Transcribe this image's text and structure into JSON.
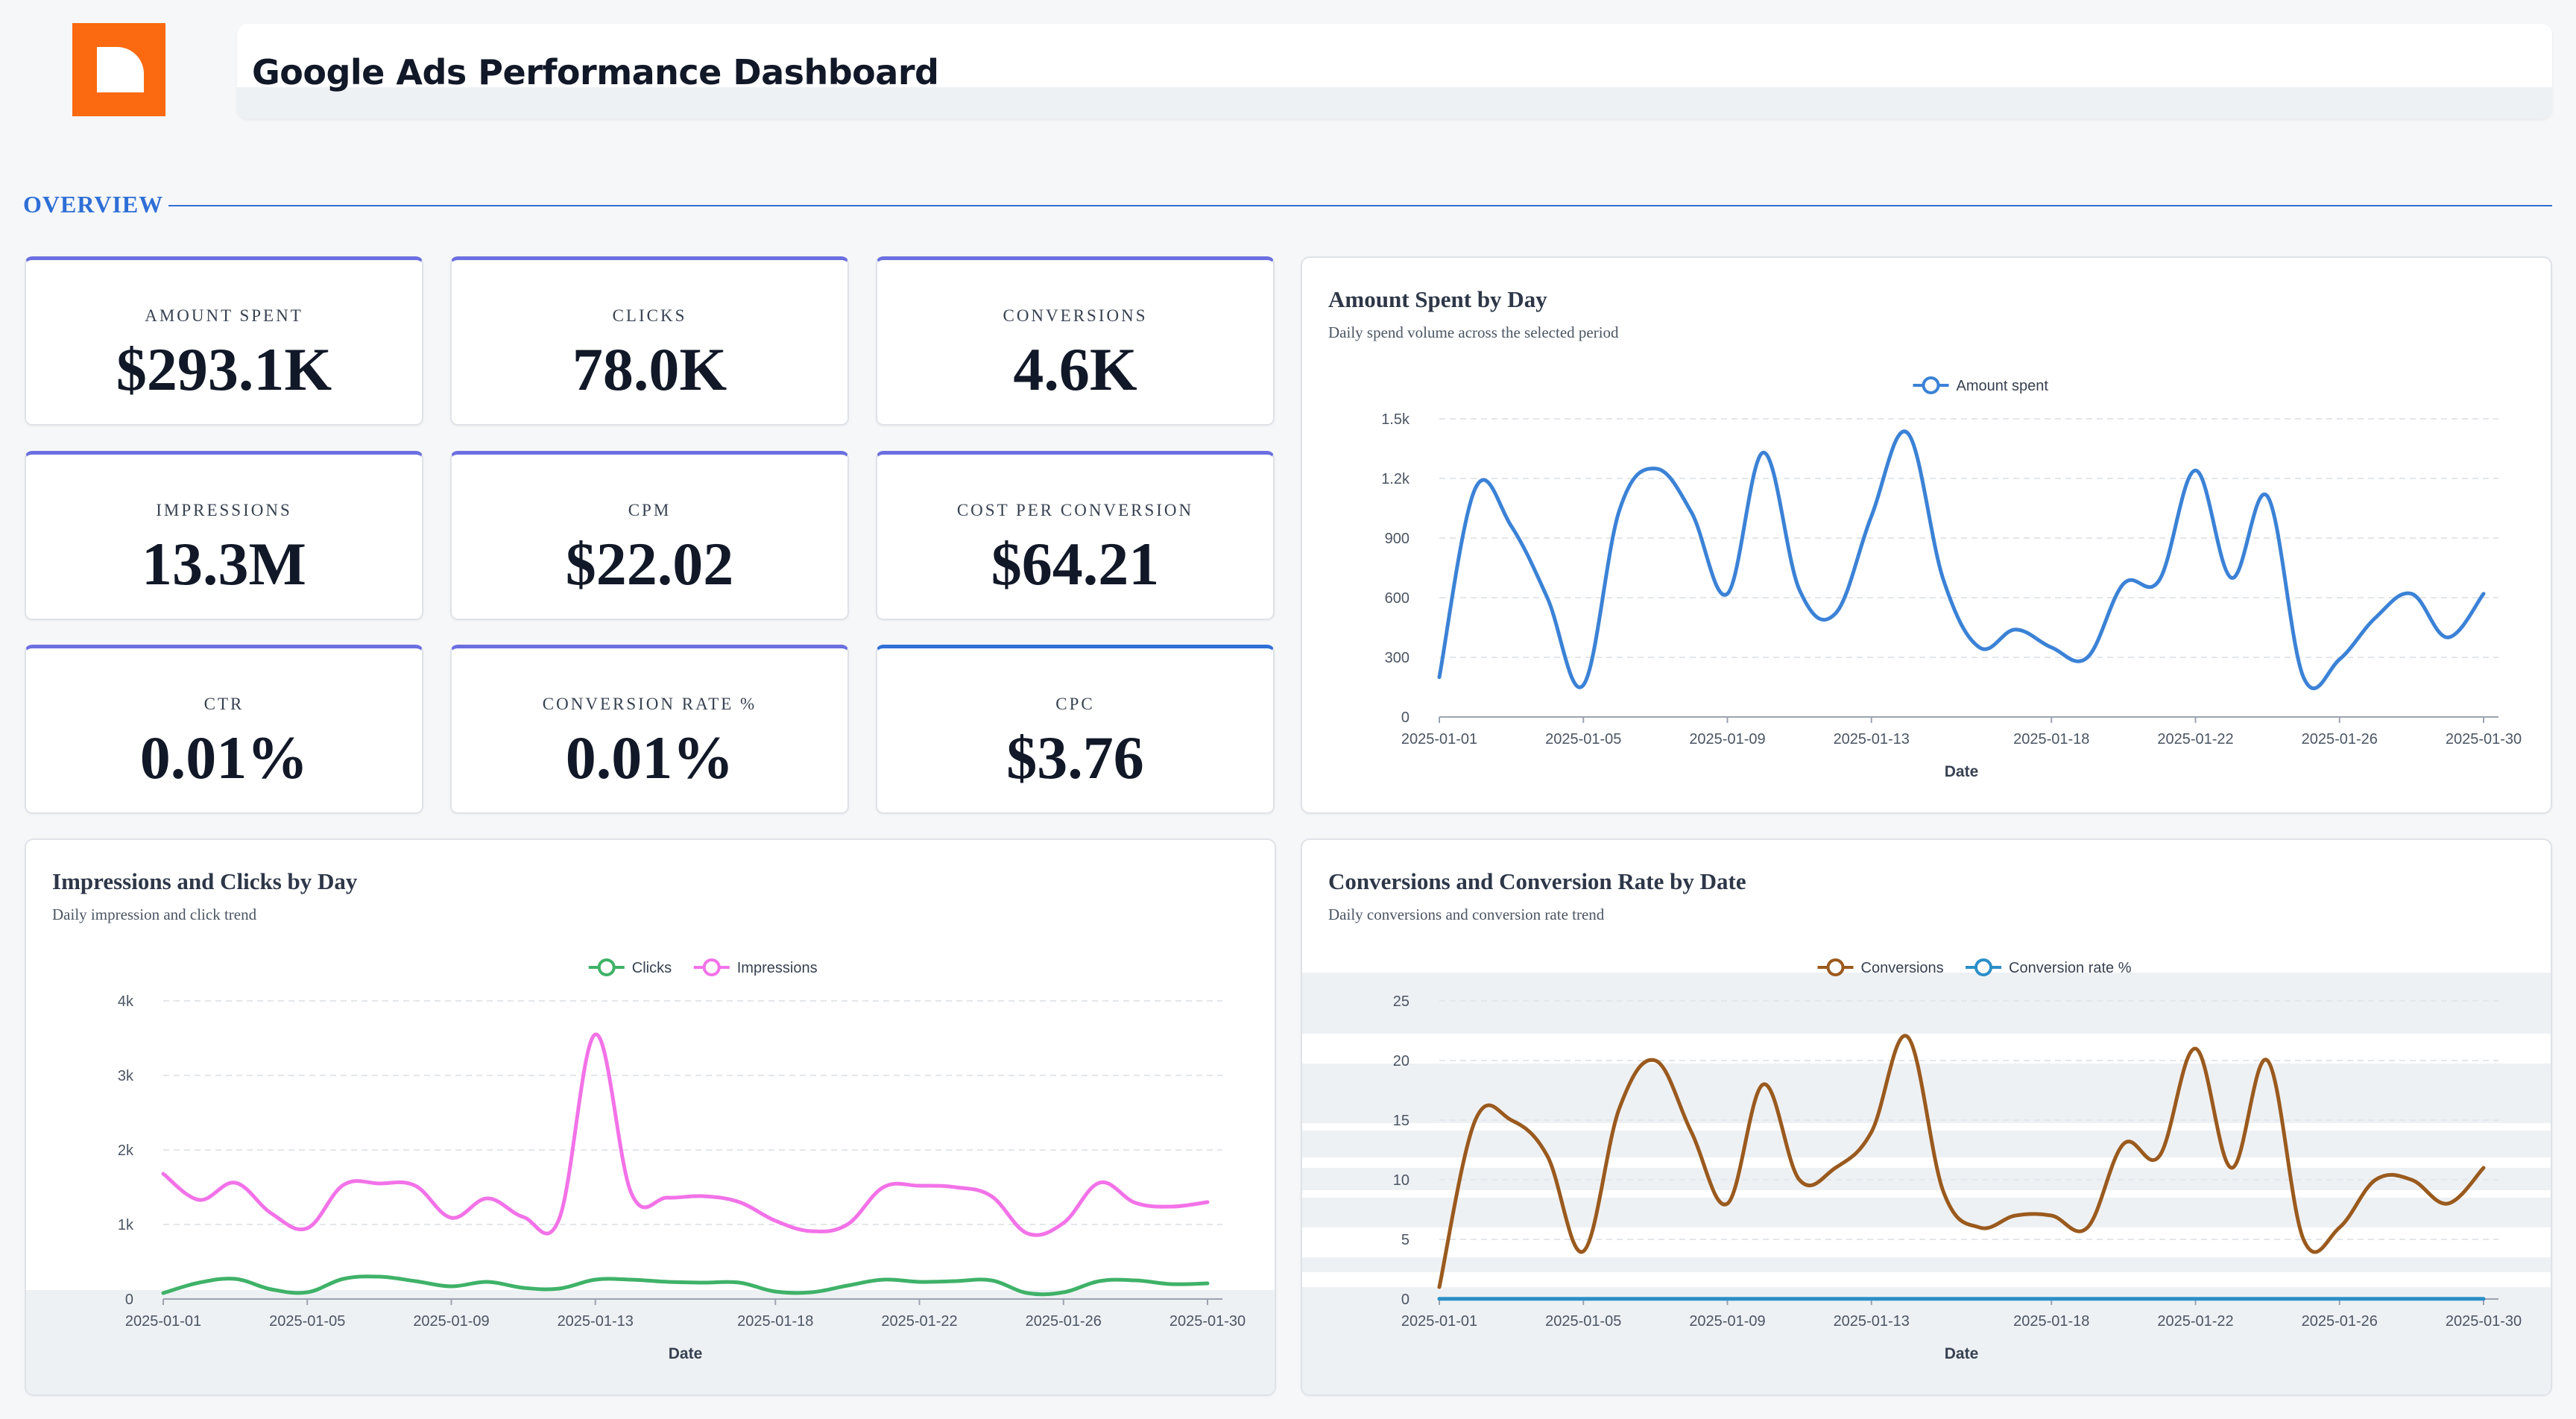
{
  "header": {
    "title": "Google Ads Performance Dashboard",
    "logo_color": "#fb6a10"
  },
  "section": {
    "label": "OVERVIEW",
    "color": "#2f6fd6"
  },
  "kpis": [
    {
      "label": "AMOUNT SPENT",
      "value": "$293.1K"
    },
    {
      "label": "CLICKS",
      "value": "78.0K"
    },
    {
      "label": "CONVERSIONS",
      "value": "4.6K"
    },
    {
      "label": "IMPRESSIONS",
      "value": "13.3M"
    },
    {
      "label": "CPM",
      "value": "$22.02"
    },
    {
      "label": "COST PER CONVERSION",
      "value": "$64.21"
    },
    {
      "label": "CTR",
      "value": "0.01%"
    },
    {
      "label": "CONVERSION RATE %",
      "value": "0.01%"
    },
    {
      "label": "CPC",
      "value": "$3.76"
    }
  ],
  "charts": {
    "spend": {
      "title": "Amount Spent by Day",
      "subtitle": "Daily spend volume across the selected period",
      "xlabel": "Date",
      "x_ticks": [
        "2025-01-01",
        "2025-01-05",
        "2025-01-09",
        "2025-01-13",
        "2025-01-18",
        "2025-01-22",
        "2025-01-26",
        "2025-01-30"
      ],
      "y_ticks": [
        "0",
        "300",
        "600",
        "900",
        "1.2k",
        "1.5k"
      ]
    },
    "impressions": {
      "title": "Impressions and Clicks by Day",
      "subtitle": "Daily impression and click trend",
      "xlabel": "Date",
      "x_ticks": [
        "2025-01-01",
        "2025-01-05",
        "2025-01-09",
        "2025-01-13",
        "2025-01-18",
        "2025-01-22",
        "2025-01-26",
        "2025-01-30"
      ],
      "y_ticks": [
        "0",
        "1k",
        "2k",
        "3k",
        "4k"
      ]
    },
    "conversions": {
      "title": "Conversions and Conversion Rate by Date",
      "subtitle": "Daily conversions and conversion rate trend",
      "xlabel": "Date",
      "x_ticks": [
        "2025-01-01",
        "2025-01-05",
        "2025-01-09",
        "2025-01-13",
        "2025-01-18",
        "2025-01-22",
        "2025-01-26",
        "2025-01-30"
      ],
      "y_ticks": [
        "0",
        "5",
        "10",
        "15",
        "20",
        "25"
      ]
    }
  },
  "chart_data": [
    {
      "type": "line",
      "title": "Amount Spent by Day",
      "subtitle": "Daily spend volume across the selected period",
      "xlabel": "Date",
      "ylabel": "",
      "x": [
        "2025-01-01",
        "2025-01-02",
        "2025-01-03",
        "2025-01-04",
        "2025-01-05",
        "2025-01-06",
        "2025-01-07",
        "2025-01-08",
        "2025-01-09",
        "2025-01-10",
        "2025-01-11",
        "2025-01-12",
        "2025-01-13",
        "2025-01-14",
        "2025-01-15",
        "2025-01-16",
        "2025-01-17",
        "2025-01-18",
        "2025-01-19",
        "2025-01-20",
        "2025-01-21",
        "2025-01-22",
        "2025-01-23",
        "2025-01-24",
        "2025-01-25",
        "2025-01-26",
        "2025-01-27",
        "2025-01-28",
        "2025-01-29",
        "2025-01-30"
      ],
      "series": [
        {
          "name": "Amount spent",
          "color": "#3b82d6",
          "values": [
            200,
            1150,
            960,
            600,
            160,
            1040,
            1250,
            1030,
            620,
            1330,
            640,
            520,
            1010,
            1430,
            690,
            350,
            440,
            350,
            300,
            670,
            690,
            1240,
            700,
            1110,
            200,
            290,
            500,
            620,
            400,
            620
          ]
        }
      ],
      "ylim": [
        0,
        1500
      ],
      "grid": true,
      "legend": "top-center"
    },
    {
      "type": "line",
      "title": "Impressions and Clicks by Day",
      "subtitle": "Daily impression and click trend",
      "xlabel": "Date",
      "ylabel": "",
      "x": [
        "2025-01-01",
        "2025-01-02",
        "2025-01-03",
        "2025-01-04",
        "2025-01-05",
        "2025-01-06",
        "2025-01-07",
        "2025-01-08",
        "2025-01-09",
        "2025-01-10",
        "2025-01-11",
        "2025-01-12",
        "2025-01-13",
        "2025-01-14",
        "2025-01-15",
        "2025-01-16",
        "2025-01-17",
        "2025-01-18",
        "2025-01-19",
        "2025-01-20",
        "2025-01-21",
        "2025-01-22",
        "2025-01-23",
        "2025-01-24",
        "2025-01-25",
        "2025-01-26",
        "2025-01-27",
        "2025-01-28",
        "2025-01-29",
        "2025-01-30"
      ],
      "series": [
        {
          "name": "Clicks",
          "color": "#3fb268",
          "values": [
            80,
            220,
            270,
            130,
            90,
            270,
            300,
            240,
            170,
            230,
            150,
            140,
            260,
            260,
            230,
            220,
            220,
            100,
            90,
            180,
            260,
            230,
            240,
            250,
            80,
            90,
            240,
            250,
            200,
            210
          ]
        },
        {
          "name": "Impressions",
          "color": "#f272e8",
          "values": [
            1680,
            1330,
            1560,
            1150,
            950,
            1530,
            1550,
            1520,
            1090,
            1350,
            1100,
            1080,
            3550,
            1420,
            1360,
            1380,
            1300,
            1050,
            910,
            1000,
            1500,
            1520,
            1500,
            1380,
            880,
            1020,
            1560,
            1290,
            1240,
            1300
          ]
        }
      ],
      "ylim": [
        0,
        4000
      ],
      "grid": true,
      "legend": "top-center"
    },
    {
      "type": "line",
      "title": "Conversions and Conversion Rate by Date",
      "subtitle": "Daily conversions and conversion rate trend",
      "xlabel": "Date",
      "ylabel": "",
      "x": [
        "2025-01-01",
        "2025-01-02",
        "2025-01-03",
        "2025-01-04",
        "2025-01-05",
        "2025-01-06",
        "2025-01-07",
        "2025-01-08",
        "2025-01-09",
        "2025-01-10",
        "2025-01-11",
        "2025-01-12",
        "2025-01-13",
        "2025-01-14",
        "2025-01-15",
        "2025-01-16",
        "2025-01-17",
        "2025-01-18",
        "2025-01-19",
        "2025-01-20",
        "2025-01-21",
        "2025-01-22",
        "2025-01-23",
        "2025-01-24",
        "2025-01-25",
        "2025-01-26",
        "2025-01-27",
        "2025-01-28",
        "2025-01-29",
        "2025-01-30"
      ],
      "series": [
        {
          "name": "Conversions",
          "color": "#9a5a1e",
          "values": [
            1,
            15,
            15,
            12,
            4,
            16,
            20,
            14,
            8,
            18,
            10,
            11,
            14,
            22,
            9,
            6,
            7,
            7,
            6,
            13,
            12,
            21,
            11,
            20,
            5,
            6,
            10,
            10,
            8,
            11
          ]
        },
        {
          "name": "Conversion rate %",
          "color": "#2b8fc7",
          "values": [
            0.01,
            0.01,
            0.01,
            0.01,
            0.01,
            0.01,
            0.01,
            0.01,
            0.01,
            0.01,
            0.01,
            0.01,
            0.01,
            0.01,
            0.01,
            0.01,
            0.01,
            0.01,
            0.01,
            0.01,
            0.01,
            0.01,
            0.01,
            0.01,
            0.01,
            0.01,
            0.01,
            0.01,
            0.01,
            0.01
          ]
        }
      ],
      "ylim": [
        0,
        25
      ],
      "grid": true,
      "legend": "top-center"
    }
  ]
}
